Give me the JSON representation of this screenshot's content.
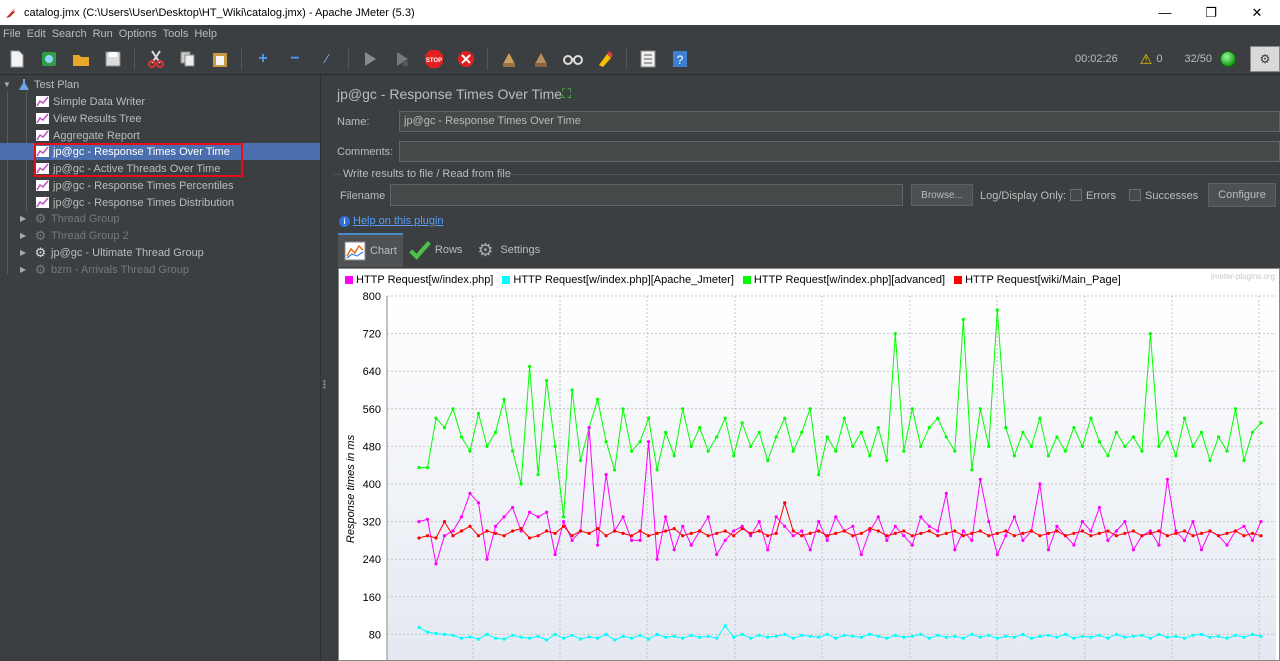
{
  "window": {
    "title": "catalog.jmx (C:\\Users\\User\\Desktop\\HT_Wiki\\catalog.jmx) - Apache JMeter (5.3)",
    "minimize": "—",
    "restore": "❐",
    "close": "✕"
  },
  "menu": [
    "File",
    "Edit",
    "Search",
    "Run",
    "Options",
    "Tools",
    "Help"
  ],
  "status": {
    "timer": "00:02:26",
    "warnings": "0",
    "threads": "32/50"
  },
  "tree": {
    "items": [
      {
        "label": "Test Plan"
      },
      {
        "label": "Simple Data Writer"
      },
      {
        "label": "View Results Tree"
      },
      {
        "label": "Aggregate Report"
      },
      {
        "label": "jp@gc - Response Times Over Time"
      },
      {
        "label": "jp@gc - Active Threads Over Time"
      },
      {
        "label": "jp@gc - Response Times Percentiles"
      },
      {
        "label": "jp@gc - Response Times Distribution"
      },
      {
        "label": "Thread Group"
      },
      {
        "label": "Thread Group 2"
      },
      {
        "label": "jp@gc - Ultimate Thread Group"
      },
      {
        "label": "bzm - Arrivals Thread Group"
      }
    ]
  },
  "panel": {
    "title": "jp@gc - Response Times Over Time",
    "name_label": "Name:",
    "name_value": "jp@gc - Response Times Over Time",
    "comments_label": "Comments:",
    "comments_value": "",
    "write_results_label": "Write results to file / Read from file",
    "filename_label": "Filename",
    "filename_value": "",
    "browse_label": "Browse...",
    "log_display_label": "Log/Display Only:",
    "errors_label": "Errors",
    "successes_label": "Successes",
    "configure_label": "Configure",
    "help_link": "Help on this plugin"
  },
  "tabs": [
    {
      "label": "Chart"
    },
    {
      "label": "Rows"
    },
    {
      "label": "Settings"
    }
  ],
  "chart_data": {
    "type": "line",
    "ylabel": "Response times in ms",
    "ylim": [
      0,
      800
    ],
    "yticks": [
      "800",
      "720",
      "640",
      "560",
      "480",
      "400",
      "320",
      "240",
      "160",
      "80"
    ],
    "watermark": "jmeter-plugins.org",
    "legend": [
      {
        "name": "HTTP Request[w/index.php]",
        "color": "#ff00ff"
      },
      {
        "name": "HTTP Request[w/index.php][Apache_Jmeter]",
        "color": "#00ffff"
      },
      {
        "name": "HTTP Request[w/index.php][advanced]",
        "color": "#00ff00"
      },
      {
        "name": "HTTP Request[wiki/Main_Page]",
        "color": "#ff0000"
      }
    ],
    "series": [
      {
        "name": "HTTP Request[w/index.php]",
        "color": "#ff00ff",
        "values": [
          320,
          325,
          230,
          290,
          300,
          330,
          380,
          360,
          240,
          310,
          330,
          350,
          300,
          340,
          330,
          340,
          250,
          320,
          280,
          300,
          520,
          270,
          420,
          300,
          330,
          280,
          280,
          490,
          240,
          330,
          260,
          310,
          270,
          300,
          330,
          250,
          280,
          300,
          310,
          290,
          320,
          260,
          330,
          310,
          290,
          300,
          260,
          320,
          280,
          330,
          300,
          310,
          250,
          300,
          330,
          280,
          310,
          290,
          270,
          330,
          310,
          300,
          380,
          260,
          300,
          280,
          410,
          320,
          250,
          290,
          330,
          280,
          300,
          400,
          260,
          310,
          290,
          270,
          320,
          300,
          350,
          280,
          300,
          320,
          260,
          290,
          300,
          270,
          410,
          300,
          280,
          320,
          260,
          300,
          290,
          270,
          300,
          310,
          280,
          320
        ]
      },
      {
        "name": "HTTP Request[w/index.php][Apache_Jmeter]",
        "color": "#00ffff",
        "values": [
          95,
          85,
          82,
          80,
          78,
          72,
          75,
          70,
          80,
          72,
          70,
          78,
          74,
          72,
          76,
          68,
          80,
          72,
          78,
          70,
          75,
          72,
          80,
          68,
          76,
          72,
          78,
          70,
          80,
          74,
          76,
          72,
          78,
          74,
          76,
          72,
          98,
          74,
          80,
          72,
          78,
          74,
          76,
          80,
          72,
          78,
          76,
          74,
          80,
          72,
          78,
          76,
          74,
          80,
          76,
          72,
          78,
          74,
          76,
          80,
          72,
          78,
          74,
          76,
          72,
          80,
          74,
          78,
          72,
          76,
          74,
          80,
          72,
          76,
          78,
          74,
          80,
          72,
          76,
          74,
          78,
          72,
          80,
          74,
          76,
          78,
          72,
          80,
          74,
          76,
          72,
          78,
          80,
          74,
          76,
          72,
          78,
          74,
          80,
          76
        ]
      },
      {
        "name": "HTTP Request[w/index.php][advanced]",
        "color": "#00ff00",
        "values": [
          435,
          435,
          540,
          520,
          560,
          500,
          470,
          550,
          480,
          510,
          580,
          470,
          400,
          650,
          420,
          620,
          480,
          330,
          600,
          450,
          520,
          580,
          490,
          430,
          560,
          470,
          490,
          540,
          430,
          510,
          460,
          560,
          480,
          520,
          470,
          500,
          540,
          460,
          530,
          480,
          510,
          450,
          500,
          540,
          470,
          510,
          560,
          420,
          500,
          470,
          540,
          480,
          510,
          460,
          520,
          450,
          720,
          470,
          560,
          480,
          520,
          540,
          500,
          470,
          750,
          430,
          560,
          480,
          770,
          520,
          460,
          510,
          480,
          540,
          460,
          500,
          470,
          520,
          480,
          540,
          490,
          460,
          510,
          480,
          500,
          470,
          720,
          480,
          510,
          460,
          540,
          480,
          510,
          450,
          500,
          470,
          560,
          450,
          510,
          530
        ]
      },
      {
        "name": "HTTP Request[wiki/Main_Page]",
        "color": "#ff0000",
        "values": [
          285,
          290,
          285,
          320,
          290,
          300,
          310,
          290,
          300,
          295,
          290,
          300,
          305,
          285,
          290,
          300,
          295,
          310,
          290,
          300,
          295,
          305,
          290,
          300,
          295,
          290,
          300,
          290,
          295,
          300,
          305,
          290,
          295,
          300,
          290,
          295,
          300,
          290,
          305,
          295,
          300,
          290,
          295,
          360,
          300,
          290,
          295,
          300,
          290,
          295,
          300,
          290,
          295,
          305,
          300,
          290,
          295,
          300,
          290,
          295,
          300,
          290,
          295,
          300,
          290,
          295,
          300,
          290,
          295,
          300,
          290,
          295,
          300,
          290,
          295,
          300,
          290,
          295,
          300,
          290,
          295,
          300,
          290,
          295,
          300,
          290,
          295,
          300,
          290,
          295,
          300,
          290,
          295,
          300,
          290,
          295,
          300,
          290,
          295,
          290
        ]
      }
    ]
  }
}
